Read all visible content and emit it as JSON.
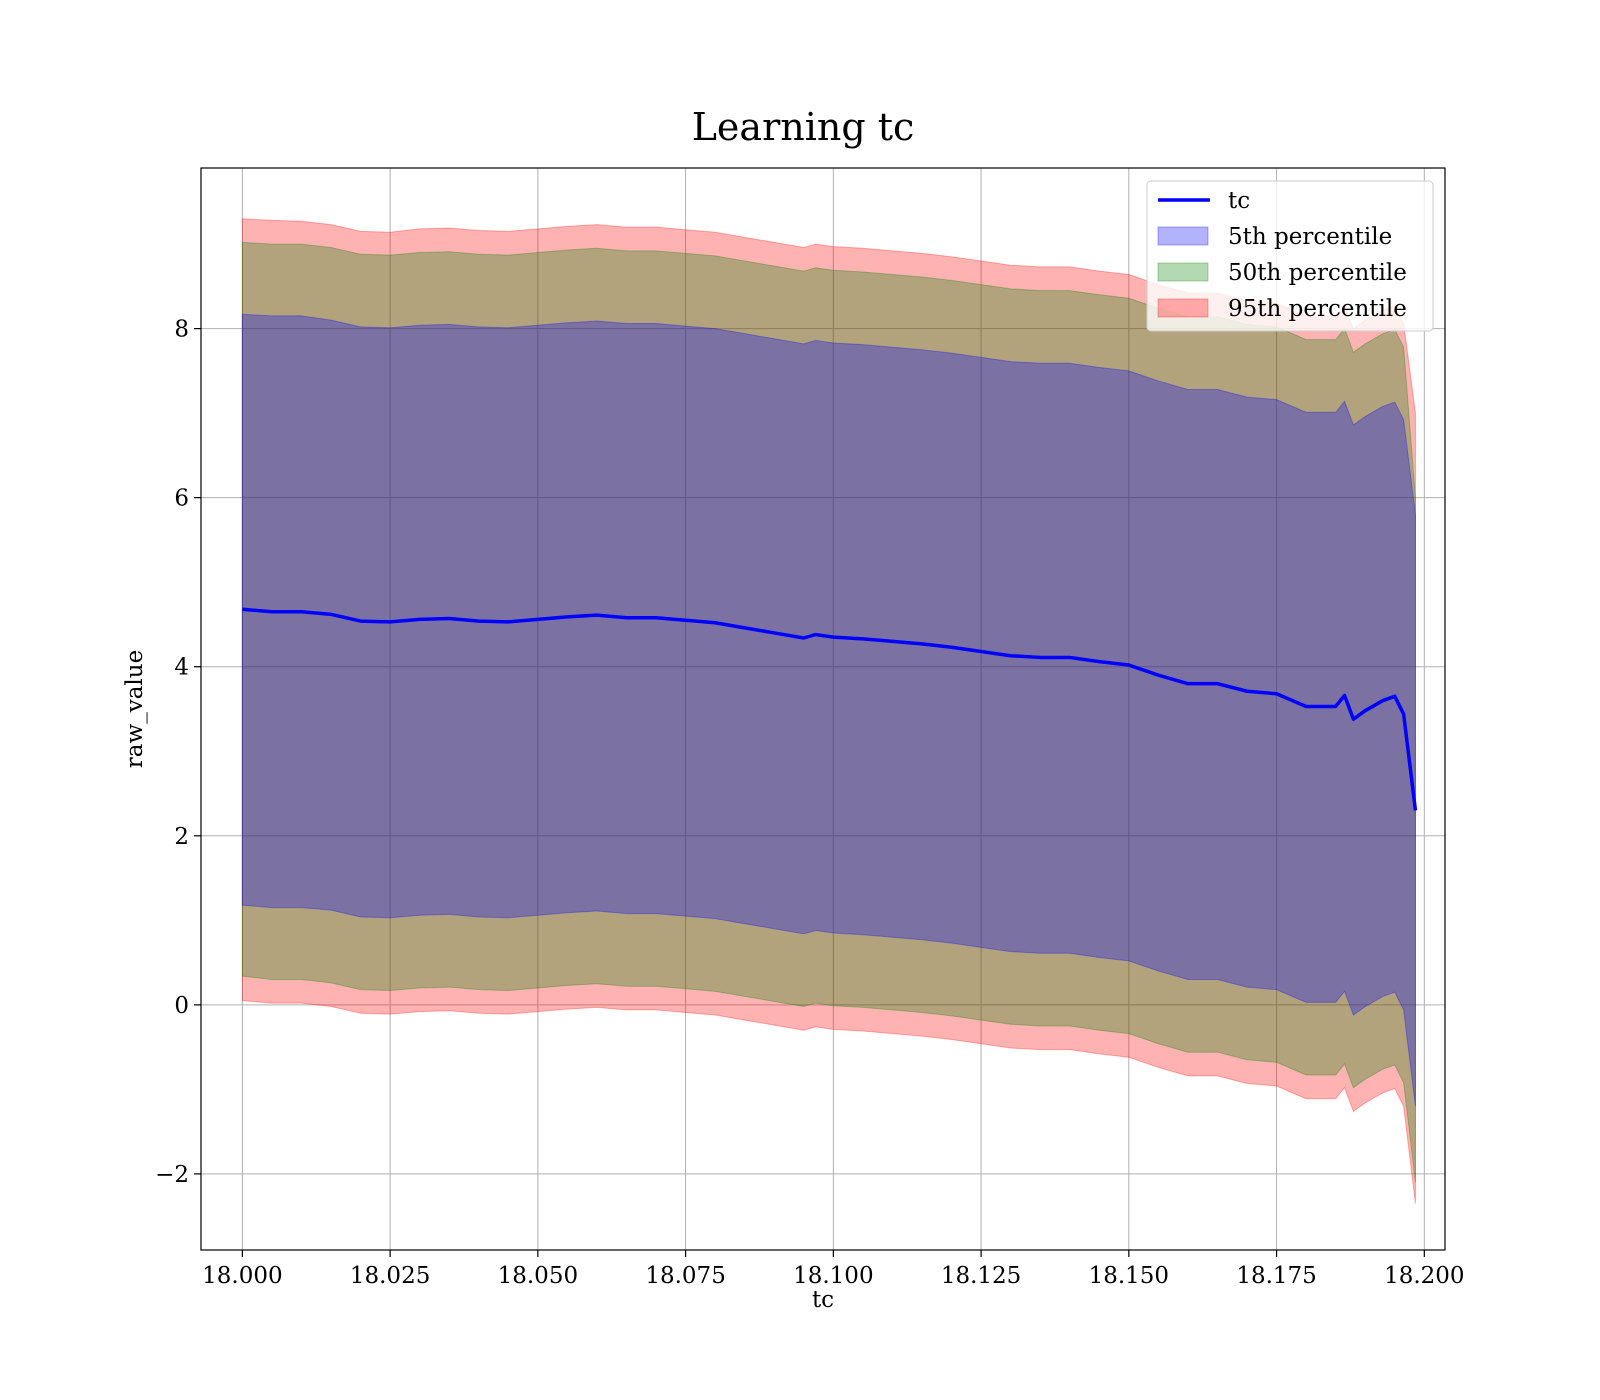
{
  "chart_data": {
    "type": "area",
    "title": "Learning tc",
    "xlabel": "tc",
    "ylabel": "raw_value",
    "xlim": [
      17.993,
      18.2035
    ],
    "ylim": [
      -2.9,
      9.9
    ],
    "x_ticks": [
      18.0,
      18.025,
      18.05,
      18.075,
      18.1,
      18.125,
      18.15,
      18.175,
      18.2
    ],
    "x_tick_labels": [
      "18.000",
      "18.025",
      "18.050",
      "18.075",
      "18.100",
      "18.125",
      "18.150",
      "18.175",
      "18.200"
    ],
    "y_ticks": [
      -2,
      0,
      2,
      4,
      6,
      8
    ],
    "y_tick_labels": [
      "−2",
      "0",
      "2",
      "4",
      "6",
      "8"
    ],
    "grid": true,
    "legend_position": "top-right",
    "legend": [
      {
        "label": "tc",
        "kind": "line",
        "color": "#0000ff"
      },
      {
        "label": "5th percentile",
        "kind": "patch",
        "color": "#0000ff"
      },
      {
        "label": "50th percentile",
        "kind": "patch",
        "color": "#008000"
      },
      {
        "label": "95th percentile",
        "kind": "patch",
        "color": "#ff0000"
      }
    ],
    "colors": {
      "line": "#0000ff",
      "band5": "#0000ff",
      "band50": "#008000",
      "band95": "#ff0000"
    },
    "x": [
      18.0,
      18.005,
      18.01,
      18.015,
      18.02,
      18.025,
      18.03,
      18.035,
      18.04,
      18.045,
      18.05,
      18.055,
      18.06,
      18.065,
      18.07,
      18.075,
      18.08,
      18.085,
      18.09,
      18.095,
      18.097,
      18.1,
      18.105,
      18.11,
      18.115,
      18.12,
      18.125,
      18.13,
      18.135,
      18.14,
      18.145,
      18.15,
      18.155,
      18.16,
      18.165,
      18.17,
      18.175,
      18.18,
      18.185,
      18.1865,
      18.188,
      18.19,
      18.193,
      18.195,
      18.1965,
      18.1985
    ],
    "tc": [
      4.68,
      4.65,
      4.65,
      4.62,
      4.54,
      4.53,
      4.56,
      4.57,
      4.54,
      4.53,
      4.56,
      4.59,
      4.61,
      4.58,
      4.58,
      4.55,
      4.52,
      4.46,
      4.4,
      4.34,
      4.38,
      4.35,
      4.33,
      4.3,
      4.27,
      4.23,
      4.18,
      4.13,
      4.11,
      4.11,
      4.06,
      4.02,
      3.9,
      3.8,
      3.8,
      3.71,
      3.68,
      3.53,
      3.53,
      3.66,
      3.38,
      3.48,
      3.6,
      3.65,
      3.44,
      2.3
    ],
    "band5_upper": [
      8.17,
      8.15,
      8.15,
      8.1,
      8.02,
      8.01,
      8.04,
      8.05,
      8.02,
      8.01,
      8.04,
      8.07,
      8.09,
      8.06,
      8.06,
      8.03,
      8.0,
      7.94,
      7.88,
      7.82,
      7.86,
      7.83,
      7.81,
      7.78,
      7.75,
      7.71,
      7.66,
      7.61,
      7.59,
      7.59,
      7.54,
      7.5,
      7.38,
      7.28,
      7.28,
      7.19,
      7.16,
      7.01,
      7.01,
      7.14,
      6.86,
      6.96,
      7.08,
      7.13,
      6.92,
      5.8
    ],
    "band5_lower": [
      1.18,
      1.15,
      1.15,
      1.12,
      1.04,
      1.03,
      1.06,
      1.07,
      1.04,
      1.03,
      1.06,
      1.09,
      1.11,
      1.08,
      1.08,
      1.05,
      1.02,
      0.96,
      0.9,
      0.84,
      0.88,
      0.85,
      0.83,
      0.8,
      0.77,
      0.73,
      0.68,
      0.63,
      0.61,
      0.61,
      0.56,
      0.52,
      0.4,
      0.3,
      0.3,
      0.21,
      0.18,
      0.03,
      0.03,
      0.16,
      -0.12,
      -0.02,
      0.1,
      0.15,
      -0.06,
      -1.2
    ],
    "band50_upper": [
      9.02,
      9.0,
      9.0,
      8.96,
      8.88,
      8.87,
      8.9,
      8.91,
      8.88,
      8.87,
      8.9,
      8.93,
      8.95,
      8.92,
      8.92,
      8.89,
      8.86,
      8.8,
      8.74,
      8.68,
      8.72,
      8.69,
      8.67,
      8.64,
      8.61,
      8.57,
      8.52,
      8.47,
      8.45,
      8.45,
      8.4,
      8.36,
      8.24,
      8.14,
      8.14,
      8.05,
      8.02,
      7.87,
      7.87,
      8.0,
      7.72,
      7.82,
      7.94,
      7.99,
      7.78,
      6.0
    ],
    "band50_lower": [
      0.34,
      0.3,
      0.3,
      0.26,
      0.18,
      0.17,
      0.2,
      0.21,
      0.18,
      0.17,
      0.2,
      0.23,
      0.25,
      0.22,
      0.22,
      0.19,
      0.16,
      0.1,
      0.04,
      -0.02,
      0.02,
      -0.01,
      -0.03,
      -0.06,
      -0.09,
      -0.13,
      -0.18,
      -0.23,
      -0.25,
      -0.25,
      -0.3,
      -0.34,
      -0.46,
      -0.56,
      -0.56,
      -0.65,
      -0.68,
      -0.83,
      -0.83,
      -0.7,
      -0.98,
      -0.88,
      -0.76,
      -0.71,
      -0.92,
      -2.1
    ],
    "band95_upper": [
      9.3,
      9.28,
      9.27,
      9.23,
      9.15,
      9.14,
      9.18,
      9.19,
      9.16,
      9.15,
      9.18,
      9.21,
      9.23,
      9.2,
      9.2,
      9.17,
      9.14,
      9.08,
      9.02,
      8.96,
      9.0,
      8.97,
      8.95,
      8.92,
      8.89,
      8.85,
      8.8,
      8.75,
      8.73,
      8.73,
      8.68,
      8.64,
      8.52,
      8.42,
      8.42,
      8.33,
      8.3,
      8.15,
      8.15,
      8.28,
      8.0,
      8.1,
      8.22,
      8.27,
      8.06,
      7.0
    ],
    "band95_lower": [
      0.05,
      0.02,
      0.02,
      -0.02,
      -0.1,
      -0.11,
      -0.08,
      -0.07,
      -0.1,
      -0.11,
      -0.08,
      -0.05,
      -0.03,
      -0.06,
      -0.06,
      -0.09,
      -0.12,
      -0.18,
      -0.24,
      -0.3,
      -0.26,
      -0.29,
      -0.31,
      -0.34,
      -0.37,
      -0.41,
      -0.46,
      -0.51,
      -0.53,
      -0.53,
      -0.58,
      -0.62,
      -0.74,
      -0.84,
      -0.84,
      -0.93,
      -0.96,
      -1.11,
      -1.11,
      -0.98,
      -1.26,
      -1.16,
      -1.04,
      -0.99,
      -1.2,
      -2.35
    ]
  }
}
